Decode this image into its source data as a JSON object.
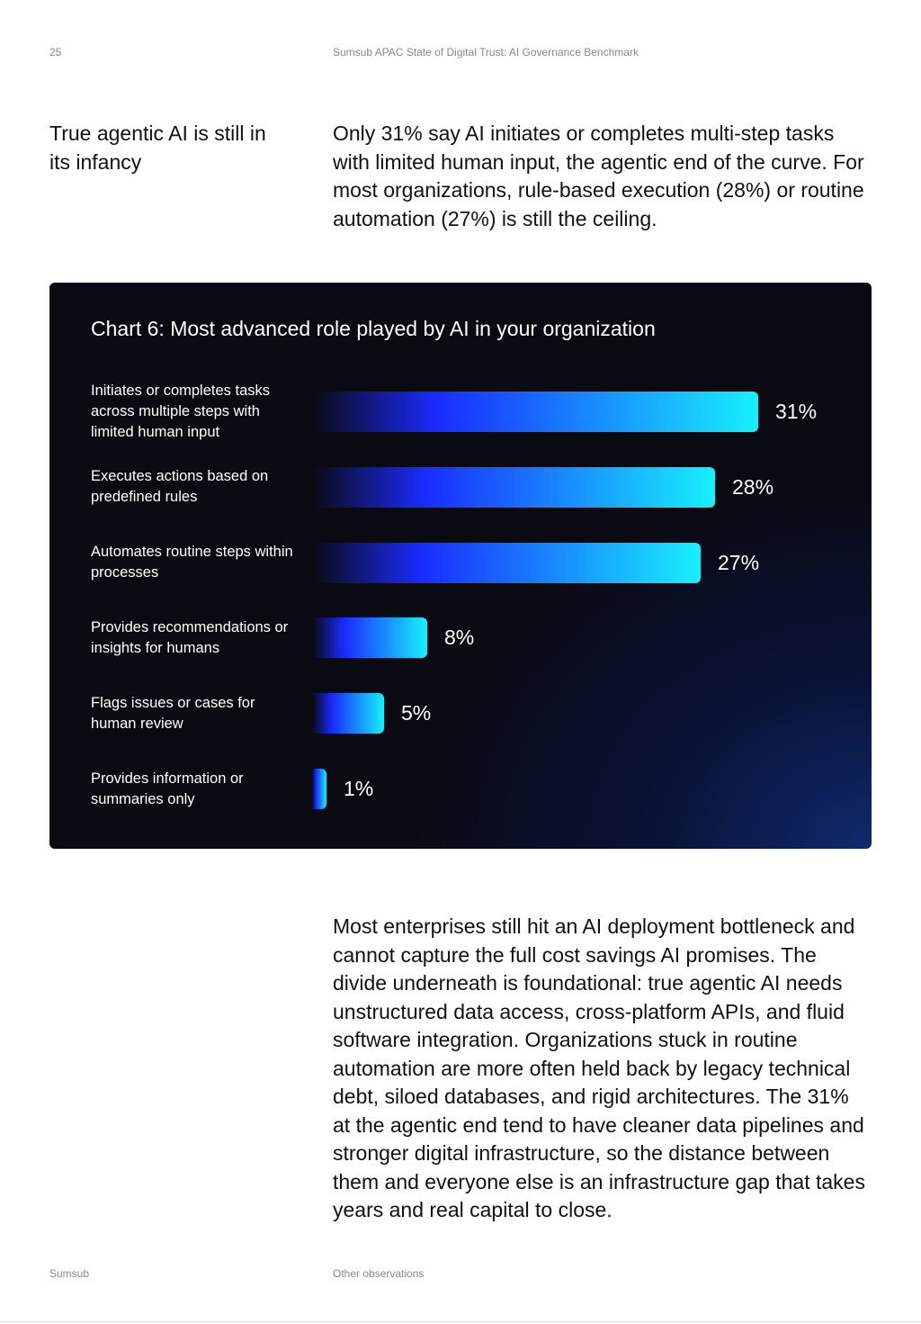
{
  "header": {
    "page_number": "25",
    "title": "Sumsub APAC State of Digital Trust: AI Governance Benchmark"
  },
  "section": {
    "heading": "True agentic AI is still in its infancy",
    "intro": "Only 31% say AI initiates or completes multi-step tasks with limited human input, the agentic end of the curve. For most organizations, rule-based execution (28%) or routine automation (27%) is still the ceiling."
  },
  "chart_data": {
    "type": "bar",
    "orientation": "horizontal",
    "title": "Chart 6: Most advanced role played by AI in your organization",
    "categories": [
      "Initiates or completes tasks across multiple steps with limited human input",
      "Executes actions based on predefined rules",
      "Automates routine steps within processes",
      "Provides recommendations or insights for humans",
      "Flags issues or cases for human review",
      "Provides information or summaries only"
    ],
    "values": [
      31,
      28,
      27,
      8,
      5,
      1
    ],
    "value_labels": [
      "31%",
      "28%",
      "27%",
      "8%",
      "5%",
      "1%"
    ],
    "color": "#17f0ff"
  },
  "body": "Most enterprises still hit an AI deployment bottleneck and cannot capture the full cost savings AI promises. The divide underneath is foundational: true agentic AI needs unstructured data access, cross-platform APIs, and fluid software integration. Organizations stuck in routine automation are more often held back by legacy technical debt, siloed databases, and rigid architectures. The 31% at the agentic end tend to have cleaner data pipelines and stronger digital infrastructure, so the distance between them and everyone else is an infrastructure gap that takes years and real capital to close.",
  "footer": {
    "left": "Sumsub",
    "right": "Other observations"
  }
}
